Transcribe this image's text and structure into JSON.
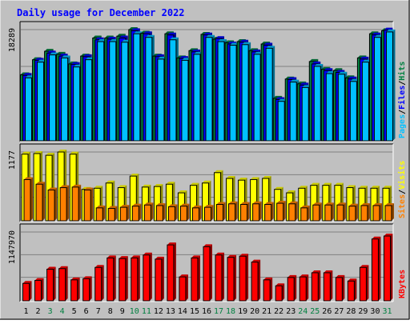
{
  "chart_data": {
    "type": "bar",
    "title": "Daily usage for December 2022",
    "categories": [
      "1",
      "2",
      "3",
      "4",
      "5",
      "6",
      "7",
      "8",
      "9",
      "10",
      "11",
      "12",
      "13",
      "14",
      "15",
      "16",
      "17",
      "18",
      "19",
      "20",
      "21",
      "22",
      "23",
      "24",
      "25",
      "26",
      "27",
      "28",
      "29",
      "30",
      "31"
    ],
    "weekend_days": [
      "3",
      "4",
      "10",
      "11",
      "17",
      "18",
      "24",
      "25",
      "31"
    ],
    "colors": {
      "hits": "#008040",
      "files": "#0000ff",
      "pages": "#00c0ff",
      "visits": "#ffff00",
      "sites": "#ff8000",
      "kbytes": "#ff0000",
      "title": "#0000ff",
      "weekday_label": "#000000",
      "weekend_label": "#008040",
      "background": "#c0c0c0",
      "gridline": "#808080"
    },
    "panels": [
      {
        "id": "requests",
        "ymax_label": "18289",
        "ylim": [
          0,
          18289
        ],
        "legend": [
          "Pages",
          "/",
          "Files",
          "/",
          "Hits"
        ],
        "series": [
          {
            "name": "Hits",
            "values": [
              10800,
              13300,
              14700,
              14200,
              12600,
              13900,
              16900,
              16900,
              17200,
              18289,
              17700,
              13900,
              17600,
              13600,
              14800,
              17500,
              16700,
              16100,
              16300,
              14800,
              15900,
              6900,
              10100,
              9300,
              13000,
              11700,
              11500,
              10300,
              13600,
              17600,
              18100
            ]
          },
          {
            "name": "Files",
            "values": [
              10700,
              13200,
              14400,
              13900,
              12500,
              13800,
              16600,
              16700,
              16900,
              18100,
              17600,
              13800,
              17400,
              13500,
              14600,
              17400,
              16800,
              15900,
              16200,
              14600,
              15700,
              6700,
              10000,
              9100,
              12600,
              11500,
              11200,
              10100,
              13400,
              17400,
              18200
            ]
          },
          {
            "name": "Pages",
            "values": [
              10300,
              12900,
              14100,
              13600,
              12100,
              13300,
              16300,
              16300,
              16200,
              17600,
              17000,
              13400,
              16600,
              13200,
              14200,
              17000,
              16300,
              15700,
              15800,
              14200,
              15200,
              6400,
              9600,
              8700,
              12200,
              11000,
              10900,
              9700,
              12900,
              17000,
              17900
            ]
          }
        ]
      },
      {
        "id": "visitors",
        "ymax_label": "1177",
        "ylim": [
          0,
          1177
        ],
        "legend": [
          "Sites",
          "/",
          "Visits"
        ],
        "series": [
          {
            "name": "Visits",
            "values": [
              1140,
              1150,
              1120,
              1177,
              1140,
              530,
              550,
              640,
              560,
              760,
              570,
              580,
              620,
              470,
              600,
              640,
              820,
              720,
              690,
              700,
              720,
              530,
              470,
              550,
              600,
              600,
              600,
              560,
              550,
              550,
              550
            ]
          },
          {
            "name": "Sites",
            "values": [
              700,
              620,
              520,
              560,
              570,
              520,
              210,
              200,
              220,
              240,
              260,
              250,
              230,
              240,
              210,
              220,
              270,
              280,
              270,
              280,
              270,
              290,
              280,
              210,
              260,
              260,
              260,
              240,
              250,
              250,
              250
            ]
          }
        ]
      },
      {
        "id": "traffic",
        "ymax_label": "1147970",
        "ylim": [
          0,
          1147970
        ],
        "legend": [
          "KBytes"
        ],
        "series": [
          {
            "name": "KBytes",
            "values": [
              280000,
              330000,
              520000,
              530000,
              340000,
              360000,
              550000,
              710000,
              700000,
              710000,
              760000,
              690000,
              930000,
              390000,
              710000,
              900000,
              760000,
              720000,
              740000,
              640000,
              340000,
              240000,
              380000,
              390000,
              460000,
              460000,
              380000,
              320000,
              550000,
              1030000,
              1080000
            ]
          }
        ]
      }
    ]
  }
}
